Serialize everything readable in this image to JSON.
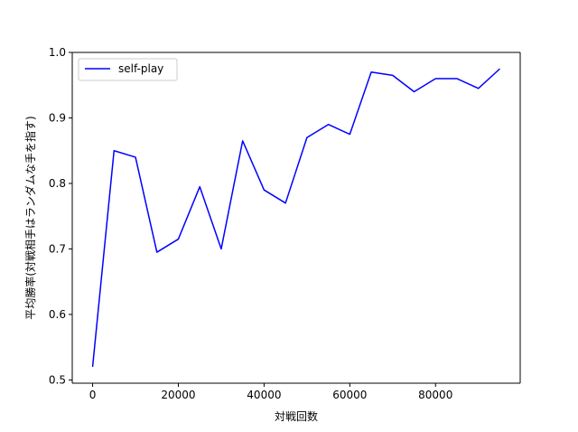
{
  "chart_data": {
    "type": "line",
    "title": "",
    "xlabel": "対戦回数",
    "ylabel": "平均勝率(対戦相手はランダムな手を指す)",
    "xlim": [
      -4750,
      99750
    ],
    "ylim": [
      0.495,
      1.0
    ],
    "xticks": [
      0,
      20000,
      40000,
      60000,
      80000
    ],
    "xtick_labels": [
      "0",
      "20000",
      "40000",
      "60000",
      "80000"
    ],
    "yticks": [
      0.5,
      0.6,
      0.7,
      0.8,
      0.9,
      1.0
    ],
    "ytick_labels": [
      "0.5",
      "0.6",
      "0.7",
      "0.8",
      "0.9",
      "1.0"
    ],
    "grid": false,
    "legend_position": "top-left",
    "series": [
      {
        "name": "self-play",
        "color": "#0000ff",
        "x": [
          0,
          5000,
          10000,
          15000,
          20000,
          25000,
          30000,
          35000,
          40000,
          45000,
          50000,
          55000,
          60000,
          65000,
          70000,
          75000,
          80000,
          85000,
          90000,
          95000
        ],
        "y": [
          0.52,
          0.85,
          0.84,
          0.695,
          0.715,
          0.795,
          0.7,
          0.865,
          0.79,
          0.77,
          0.87,
          0.89,
          0.875,
          0.97,
          0.965,
          0.94,
          0.96,
          0.96,
          0.945,
          0.975
        ]
      }
    ]
  }
}
